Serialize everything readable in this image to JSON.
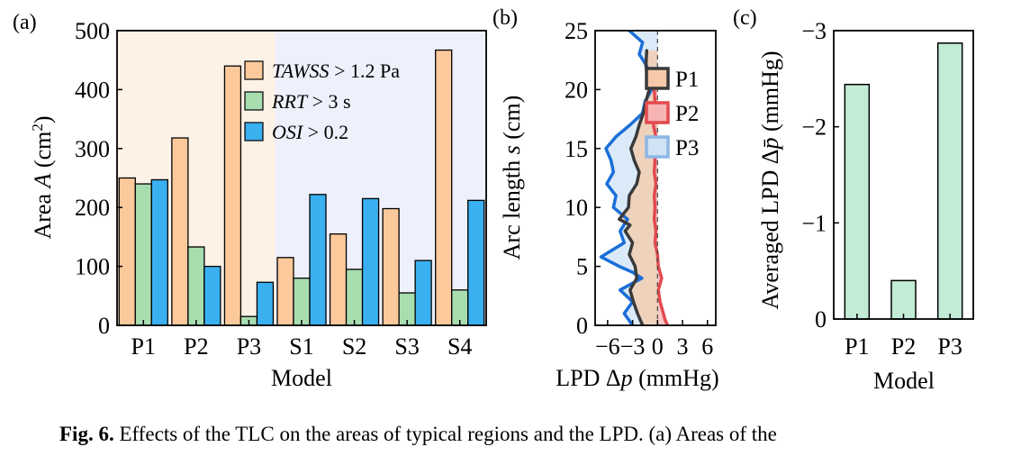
{
  "caption": {
    "label": "Fig. 6.",
    "text": "Effects of the TLC on the areas of typical regions and the LPD. (a) Areas of the"
  },
  "chart_data": [
    {
      "panel": "(a)",
      "type": "bar",
      "categories": [
        "P1",
        "P2",
        "P3",
        "S1",
        "S2",
        "S3",
        "S4"
      ],
      "series": [
        {
          "name_italic": "TAWSS",
          "name_rest": " > 1.2 Pa",
          "color": "#fbc99b",
          "values": [
            250,
            318,
            440,
            115,
            155,
            198,
            467
          ]
        },
        {
          "name_italic": "RRT",
          "name_rest": " > 3 s",
          "color": "#a8ddb0",
          "values": [
            240,
            133,
            15,
            80,
            95,
            55,
            60
          ]
        },
        {
          "name_italic": "OSI",
          "name_rest": " > 0.2",
          "color": "#3ab0f0",
          "values": [
            247,
            100,
            73,
            222,
            215,
            110,
            212
          ]
        }
      ],
      "xlabel": "Model",
      "ylabel_pre": "Area ",
      "ylabel_var": "A",
      "ylabel_unit": " (cm",
      "ylabel_sup": "2",
      "ylabel_post": ")",
      "ylim": [
        0,
        500
      ],
      "yticks": [
        "0",
        "100",
        "200",
        "300",
        "400",
        "500"
      ],
      "background_regions": [
        {
          "from": "P1",
          "to": "P3",
          "color": "#fdf2e6"
        },
        {
          "from": "S1",
          "to": "S4",
          "color": "#eef0fb"
        }
      ],
      "legend_position": "top-center",
      "grid": false
    },
    {
      "panel": "(b)",
      "type": "area",
      "xlabel_pre": "LPD Δ",
      "xlabel_var": "p",
      "xlabel_post": " (mmHg)",
      "ylabel_pre": "Arc length ",
      "ylabel_var": "s",
      "ylabel_post": " (cm)",
      "xlim": [
        -7.5,
        7
      ],
      "ylim": [
        0,
        25
      ],
      "xticks": [
        "−6",
        "−3",
        "0",
        "3",
        "6"
      ],
      "yticks": [
        "0",
        "5",
        "10",
        "15",
        "20",
        "25"
      ],
      "zero_line": "dashed",
      "legend_position": "upper-right",
      "series": [
        {
          "name": "P1",
          "line_color": "#3a3a3a",
          "fill_color": "#f6c9a8",
          "points": [
            [
              -1.8,
              0
            ],
            [
              -2.4,
              1
            ],
            [
              -2.9,
              2
            ],
            [
              -3.3,
              3
            ],
            [
              -2.5,
              4
            ],
            [
              -2.7,
              5
            ],
            [
              -3.4,
              6
            ],
            [
              -3.0,
              7
            ],
            [
              -3.9,
              8
            ],
            [
              -3.3,
              8.5
            ],
            [
              -4.6,
              9
            ],
            [
              -3.5,
              10
            ],
            [
              -3.4,
              11
            ],
            [
              -2.5,
              12
            ],
            [
              -2.2,
              13
            ],
            [
              -2.8,
              14
            ],
            [
              -3.2,
              15
            ],
            [
              -2.6,
              16
            ],
            [
              -2.2,
              17
            ],
            [
              -1.7,
              18
            ],
            [
              -1.4,
              19
            ],
            [
              -1.0,
              20
            ],
            [
              -1.2,
              21
            ],
            [
              -1.4,
              22
            ],
            [
              -1.3,
              23.3
            ]
          ]
        },
        {
          "name": "P2",
          "line_color": "#e34a4f",
          "fill_color": "#f7b4b4",
          "points": [
            [
              1.2,
              0
            ],
            [
              0.9,
              0.5
            ],
            [
              0.7,
              1
            ],
            [
              0.3,
              2
            ],
            [
              0.1,
              3
            ],
            [
              0.5,
              4
            ],
            [
              0.1,
              5
            ],
            [
              0.0,
              6
            ],
            [
              -0.3,
              7
            ],
            [
              -0.2,
              8
            ],
            [
              -0.4,
              9
            ],
            [
              -0.3,
              10
            ],
            [
              -0.4,
              11
            ],
            [
              -0.2,
              12
            ],
            [
              -0.4,
              13
            ],
            [
              -0.3,
              14
            ],
            [
              -0.4,
              15
            ],
            [
              -0.2,
              16
            ],
            [
              -0.5,
              17
            ],
            [
              -0.6,
              18
            ],
            [
              -0.3,
              19
            ],
            [
              -0.4,
              20
            ],
            [
              -0.5,
              20.8
            ]
          ]
        },
        {
          "name": "P3",
          "line_color": "#1b6ed8",
          "fill_color": "#cfe3f5",
          "points": [
            [
              -3.0,
              0
            ],
            [
              -4.0,
              1
            ],
            [
              -3.0,
              2
            ],
            [
              -4.5,
              3
            ],
            [
              -1.9,
              4
            ],
            [
              -3.0,
              4.5
            ],
            [
              -4.6,
              5
            ],
            [
              -6.8,
              5.8
            ],
            [
              -4.0,
              7
            ],
            [
              -4.5,
              8
            ],
            [
              -3.6,
              9
            ],
            [
              -5.3,
              10
            ],
            [
              -5.0,
              11
            ],
            [
              -6.1,
              12
            ],
            [
              -5.3,
              13
            ],
            [
              -5.6,
              14
            ],
            [
              -6.2,
              15
            ],
            [
              -5.0,
              16
            ],
            [
              -3.3,
              17
            ],
            [
              -1.8,
              18
            ],
            [
              -1.5,
              19
            ],
            [
              -0.7,
              20
            ],
            [
              -1.2,
              21
            ],
            [
              -1.3,
              22
            ],
            [
              -2.2,
              23
            ],
            [
              -1.8,
              24
            ],
            [
              -3.4,
              25
            ]
          ]
        }
      ]
    },
    {
      "panel": "(c)",
      "type": "bar",
      "categories": [
        "P1",
        "P2",
        "P3"
      ],
      "values": [
        -2.44,
        -0.4,
        -2.87
      ],
      "color": "#c2ecd6",
      "xlabel": "Model",
      "ylabel_pre": "Averaged LPD Δ",
      "ylabel_var": "p̄",
      "ylabel_post": " (mmHg)",
      "ylim": [
        0,
        -3
      ],
      "yticks": [
        "0",
        "−1",
        "−2",
        "−3"
      ],
      "inverted_y": true
    }
  ]
}
